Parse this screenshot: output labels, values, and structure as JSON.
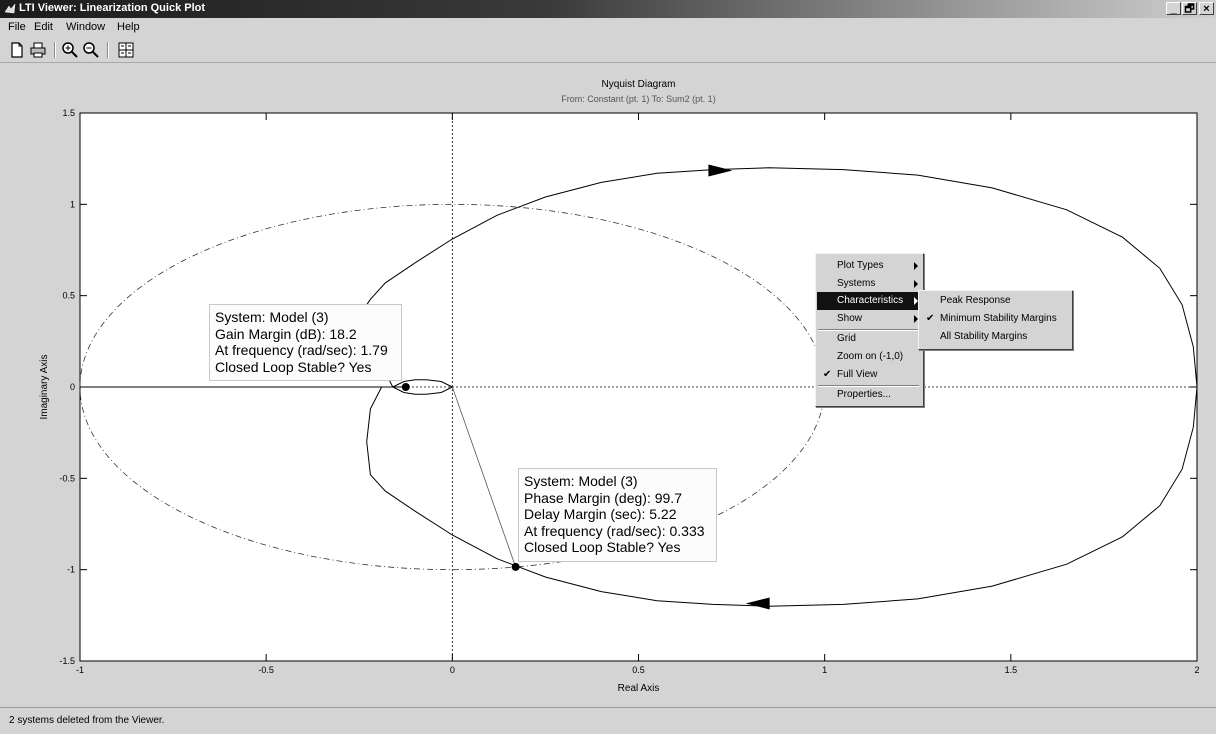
{
  "window": {
    "title": "LTI Viewer: Linearization Quick Plot",
    "controls": [
      "_",
      "🗗",
      "×"
    ]
  },
  "menubar": [
    "File",
    "Edit",
    "Window",
    "Help"
  ],
  "toolbar": [
    "new-icon",
    "print-icon",
    "zoom-in-icon",
    "zoom-out-icon",
    "plot-configurations-icon"
  ],
  "chart_data": {
    "type": "line",
    "title": "Nyquist Diagram",
    "subtitle": "From: Constant (pt. 1)  To: Sum2 (pt. 1)",
    "xlabel": "Real Axis",
    "ylabel": "Imaginary Axis",
    "xlim": [
      -1,
      2
    ],
    "ylim": [
      -1.5,
      1.5
    ],
    "xticks": [
      "-1",
      "-0.5",
      "0",
      "0.5",
      "1",
      "1.5",
      "2"
    ],
    "yticks": [
      "-1.5",
      "-1",
      "-0.5",
      "0",
      "0.5",
      "1",
      "1.5"
    ],
    "grid": false,
    "series": [
      {
        "style": "solid",
        "x": [
          2.0,
          1.99,
          1.96,
          1.9,
          1.8,
          1.65,
          1.45,
          1.25,
          1.05,
          0.85,
          0.7,
          0.55,
          0.4,
          0.25,
          0.12,
          0.0,
          -0.1,
          -0.18,
          -0.22,
          -0.23,
          -0.22,
          -0.19,
          -0.16,
          -0.13,
          -0.1,
          -0.07,
          -0.03,
          0.0
        ],
        "y": [
          0.0,
          0.22,
          0.45,
          0.65,
          0.82,
          0.97,
          1.09,
          1.16,
          1.19,
          1.2,
          1.19,
          1.17,
          1.12,
          1.04,
          0.94,
          0.81,
          0.68,
          0.57,
          0.48,
          0.45,
          0.3,
          0.12,
          0.0,
          -0.03,
          -0.04,
          -0.04,
          -0.03,
          0.0
        ]
      },
      {
        "style": "solid",
        "x": [
          2.0,
          1.99,
          1.96,
          1.9,
          1.8,
          1.65,
          1.45,
          1.25,
          1.05,
          0.85,
          0.7,
          0.55,
          0.4,
          0.25,
          0.12,
          0.0,
          -0.1,
          -0.18,
          -0.22,
          -0.23,
          -0.22,
          -0.19,
          -0.16,
          -0.13,
          -0.1,
          -0.07,
          -0.03,
          0.0
        ],
        "y": [
          0.0,
          -0.22,
          -0.45,
          -0.65,
          -0.82,
          -0.97,
          -1.09,
          -1.16,
          -1.19,
          -1.2,
          -1.19,
          -1.17,
          -1.12,
          -1.04,
          -0.94,
          -0.81,
          -0.68,
          -0.57,
          -0.48,
          -0.3,
          -0.12,
          0.0,
          0.0,
          0.03,
          0.04,
          0.04,
          0.03,
          0.0
        ]
      }
    ],
    "unit_circle": {
      "center": [
        0,
        0
      ],
      "radius": 1,
      "style": "dash-dot"
    },
    "margin_points": [
      {
        "x": -0.125,
        "y": 0.0
      },
      {
        "x": 0.17,
        "y": -0.985
      }
    ],
    "direction_arrows": [
      {
        "x": 0.72,
        "y": 1.185,
        "direction": "right"
      },
      {
        "x": 0.82,
        "y": -1.185,
        "direction": "left"
      }
    ],
    "datatips": [
      [
        "System: Model (3)",
        "Gain Margin (dB): 18.2",
        "At frequency (rad/sec): 1.79",
        "Closed Loop Stable? Yes"
      ],
      [
        "System: Model (3)",
        "Phase Margin (deg): 99.7",
        "Delay Margin (sec): 5.22",
        "At frequency (rad/sec): 0.333",
        "Closed Loop Stable? Yes"
      ]
    ]
  },
  "context_menu": {
    "items": [
      {
        "label": "Plot Types",
        "submenu": true
      },
      {
        "label": "Systems",
        "submenu": true
      },
      {
        "label": "Characteristics",
        "submenu": true,
        "highlighted": true
      },
      {
        "label": "Show",
        "submenu": true
      },
      {
        "label": "Grid"
      },
      {
        "label": "Zoom on (-1,0)"
      },
      {
        "label": "Full View",
        "checked": true
      },
      {
        "label": "Properties..."
      }
    ],
    "check_mark": "✔"
  },
  "submenu": {
    "items": [
      {
        "label": "Peak Response"
      },
      {
        "label": "Minimum Stability Margins",
        "checked": true
      },
      {
        "label": "All Stability Margins"
      }
    ]
  },
  "status": {
    "text": "2 systems deleted from the Viewer."
  }
}
